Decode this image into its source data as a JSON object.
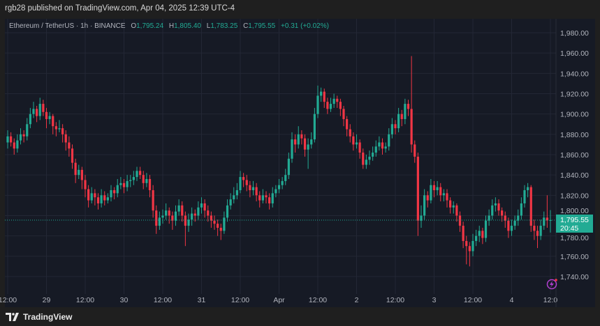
{
  "header": {
    "published": "rgb28 published on TradingView.com, Apr 04, 2025 12:39 UTC-4"
  },
  "legend": {
    "symbol": "Ethereum / TetherUS · 1h · BINANCE",
    "o_label": "O",
    "o": "1,795.24",
    "h_label": "H",
    "h": "1,805.40",
    "l_label": "L",
    "l": "1,783.25",
    "c_label": "C",
    "c": "1,795.55",
    "change": "+0.31 (+0.02%)"
  },
  "price_badge": {
    "price": "1,795.55",
    "countdown": "20:45"
  },
  "footer": {
    "brand": "TradingView"
  },
  "colors": {
    "up": "#22ab94",
    "down": "#f23645",
    "background": "#161a25",
    "grid": "#232735",
    "alert_icon": "#b33fd1"
  },
  "chart_data": {
    "type": "candlestick",
    "interval": "1h",
    "ylim": [
      1725,
      1995
    ],
    "grid": true,
    "y_ticks": [
      "1,740.00",
      "1,760.00",
      "1,780.00",
      "1,800.00",
      "1,820.00",
      "1,840.00",
      "1,860.00",
      "1,880.00",
      "1,900.00",
      "1,920.00",
      "1,940.00",
      "1,960.00",
      "1,980.00"
    ],
    "y_tick_values": [
      1740,
      1760,
      1780,
      1800,
      1820,
      1840,
      1860,
      1880,
      1900,
      1920,
      1940,
      1960,
      1980
    ],
    "x_ticks": [
      "12:00",
      "29",
      "12:00",
      "30",
      "12:00",
      "31",
      "12:00",
      "Apr",
      "12:00",
      "2",
      "12:00",
      "3",
      "12:00",
      "4",
      "12:0"
    ],
    "x_tick_hours": [
      0,
      12,
      24,
      36,
      48,
      60,
      72,
      84,
      96,
      108,
      120,
      132,
      144,
      156,
      168
    ],
    "last_price": 1795.55,
    "candles_ohlc": [
      [
        1872,
        1884,
        1866,
        1878
      ],
      [
        1878,
        1882,
        1868,
        1872
      ],
      [
        1872,
        1876,
        1860,
        1866
      ],
      [
        1866,
        1880,
        1862,
        1874
      ],
      [
        1874,
        1886,
        1870,
        1880
      ],
      [
        1880,
        1884,
        1872,
        1878
      ],
      [
        1878,
        1896,
        1874,
        1890
      ],
      [
        1890,
        1906,
        1886,
        1900
      ],
      [
        1900,
        1912,
        1896,
        1905
      ],
      [
        1905,
        1908,
        1892,
        1898
      ],
      [
        1898,
        1916,
        1894,
        1910
      ],
      [
        1910,
        1914,
        1898,
        1902
      ],
      [
        1902,
        1906,
        1886,
        1895
      ],
      [
        1895,
        1902,
        1890,
        1898
      ],
      [
        1898,
        1900,
        1880,
        1888
      ],
      [
        1888,
        1892,
        1878,
        1885
      ],
      [
        1885,
        1894,
        1882,
        1886
      ],
      [
        1886,
        1890,
        1872,
        1880
      ],
      [
        1880,
        1884,
        1864,
        1872
      ],
      [
        1872,
        1878,
        1858,
        1866
      ],
      [
        1866,
        1870,
        1846,
        1852
      ],
      [
        1852,
        1856,
        1832,
        1840
      ],
      [
        1840,
        1850,
        1836,
        1845
      ],
      [
        1845,
        1848,
        1826,
        1835
      ],
      [
        1835,
        1840,
        1818,
        1826
      ],
      [
        1826,
        1830,
        1808,
        1815
      ],
      [
        1815,
        1828,
        1812,
        1822
      ],
      [
        1822,
        1826,
        1810,
        1818
      ],
      [
        1818,
        1822,
        1806,
        1812
      ],
      [
        1812,
        1826,
        1808,
        1820
      ],
      [
        1820,
        1824,
        1810,
        1815
      ],
      [
        1815,
        1822,
        1812,
        1818
      ],
      [
        1818,
        1830,
        1814,
        1825
      ],
      [
        1825,
        1828,
        1816,
        1822
      ],
      [
        1822,
        1836,
        1818,
        1830
      ],
      [
        1830,
        1838,
        1826,
        1832
      ],
      [
        1832,
        1836,
        1822,
        1828
      ],
      [
        1828,
        1840,
        1824,
        1834
      ],
      [
        1834,
        1840,
        1828,
        1835
      ],
      [
        1835,
        1844,
        1830,
        1838
      ],
      [
        1838,
        1848,
        1834,
        1844
      ],
      [
        1844,
        1848,
        1836,
        1840
      ],
      [
        1840,
        1844,
        1826,
        1832
      ],
      [
        1832,
        1842,
        1828,
        1836
      ],
      [
        1836,
        1840,
        1818,
        1825
      ],
      [
        1825,
        1830,
        1798,
        1805
      ],
      [
        1805,
        1810,
        1782,
        1790
      ],
      [
        1790,
        1804,
        1786,
        1798
      ],
      [
        1798,
        1806,
        1792,
        1800
      ],
      [
        1800,
        1812,
        1796,
        1805
      ],
      [
        1805,
        1808,
        1792,
        1800
      ],
      [
        1800,
        1804,
        1786,
        1795
      ],
      [
        1795,
        1810,
        1790,
        1804
      ],
      [
        1804,
        1816,
        1800,
        1810
      ],
      [
        1810,
        1814,
        1794,
        1800
      ],
      [
        1800,
        1804,
        1770,
        1790
      ],
      [
        1790,
        1802,
        1784,
        1796
      ],
      [
        1796,
        1808,
        1790,
        1802
      ],
      [
        1802,
        1806,
        1794,
        1800
      ],
      [
        1800,
        1814,
        1796,
        1808
      ],
      [
        1808,
        1818,
        1802,
        1812
      ],
      [
        1812,
        1816,
        1798,
        1805
      ],
      [
        1805,
        1810,
        1794,
        1800
      ],
      [
        1800,
        1804,
        1788,
        1795
      ],
      [
        1795,
        1800,
        1786,
        1792
      ],
      [
        1792,
        1796,
        1780,
        1788
      ],
      [
        1788,
        1792,
        1776,
        1785
      ],
      [
        1785,
        1804,
        1782,
        1798
      ],
      [
        1798,
        1816,
        1794,
        1810
      ],
      [
        1810,
        1822,
        1806,
        1816
      ],
      [
        1816,
        1828,
        1812,
        1820
      ],
      [
        1820,
        1832,
        1816,
        1825
      ],
      [
        1825,
        1844,
        1822,
        1838
      ],
      [
        1838,
        1842,
        1828,
        1835
      ],
      [
        1835,
        1840,
        1824,
        1830
      ],
      [
        1830,
        1834,
        1818,
        1825
      ],
      [
        1825,
        1834,
        1820,
        1828
      ],
      [
        1828,
        1832,
        1814,
        1820
      ],
      [
        1820,
        1824,
        1808,
        1815
      ],
      [
        1815,
        1826,
        1812,
        1820
      ],
      [
        1820,
        1824,
        1812,
        1818
      ],
      [
        1818,
        1822,
        1806,
        1812
      ],
      [
        1812,
        1828,
        1808,
        1822
      ],
      [
        1822,
        1830,
        1818,
        1826
      ],
      [
        1826,
        1836,
        1822,
        1830
      ],
      [
        1830,
        1838,
        1826,
        1834
      ],
      [
        1834,
        1846,
        1830,
        1840
      ],
      [
        1840,
        1862,
        1836,
        1856
      ],
      [
        1856,
        1882,
        1852,
        1875
      ],
      [
        1875,
        1880,
        1862,
        1870
      ],
      [
        1870,
        1888,
        1866,
        1880
      ],
      [
        1880,
        1884,
        1870,
        1876
      ],
      [
        1876,
        1880,
        1858,
        1865
      ],
      [
        1865,
        1876,
        1846,
        1870
      ],
      [
        1870,
        1882,
        1866,
        1875
      ],
      [
        1875,
        1906,
        1872,
        1900
      ],
      [
        1900,
        1928,
        1896,
        1918
      ],
      [
        1918,
        1926,
        1912,
        1922
      ],
      [
        1922,
        1925,
        1906,
        1912
      ],
      [
        1912,
        1916,
        1900,
        1905
      ],
      [
        1905,
        1916,
        1902,
        1910
      ],
      [
        1910,
        1920,
        1906,
        1915
      ],
      [
        1915,
        1918,
        1906,
        1912
      ],
      [
        1912,
        1915,
        1898,
        1905
      ],
      [
        1905,
        1908,
        1888,
        1895
      ],
      [
        1895,
        1898,
        1878,
        1885
      ],
      [
        1885,
        1890,
        1872,
        1878
      ],
      [
        1878,
        1882,
        1864,
        1870
      ],
      [
        1870,
        1880,
        1866,
        1872
      ],
      [
        1872,
        1875,
        1856,
        1862
      ],
      [
        1862,
        1866,
        1846,
        1850
      ],
      [
        1850,
        1860,
        1846,
        1855
      ],
      [
        1855,
        1864,
        1850,
        1858
      ],
      [
        1858,
        1868,
        1854,
        1862
      ],
      [
        1862,
        1874,
        1858,
        1868
      ],
      [
        1868,
        1878,
        1864,
        1872
      ],
      [
        1872,
        1876,
        1860,
        1866
      ],
      [
        1866,
        1872,
        1862,
        1868
      ],
      [
        1868,
        1886,
        1864,
        1880
      ],
      [
        1880,
        1896,
        1876,
        1890
      ],
      [
        1890,
        1894,
        1880,
        1886
      ],
      [
        1886,
        1906,
        1882,
        1900
      ],
      [
        1900,
        1904,
        1888,
        1895
      ],
      [
        1895,
        1915,
        1890,
        1910
      ],
      [
        1910,
        1914,
        1898,
        1905
      ],
      [
        1905,
        1957,
        1862,
        1870
      ],
      [
        1870,
        1874,
        1852,
        1858
      ],
      [
        1858,
        1862,
        1780,
        1795
      ],
      [
        1795,
        1810,
        1788,
        1800
      ],
      [
        1800,
        1826,
        1796,
        1820
      ],
      [
        1820,
        1824,
        1808,
        1815
      ],
      [
        1815,
        1836,
        1812,
        1830
      ],
      [
        1830,
        1834,
        1818,
        1825
      ],
      [
        1825,
        1834,
        1820,
        1828
      ],
      [
        1828,
        1832,
        1814,
        1820
      ],
      [
        1820,
        1826,
        1814,
        1822
      ],
      [
        1822,
        1826,
        1808,
        1815
      ],
      [
        1815,
        1818,
        1802,
        1808
      ],
      [
        1808,
        1814,
        1802,
        1810
      ],
      [
        1810,
        1812,
        1794,
        1800
      ],
      [
        1800,
        1804,
        1784,
        1790
      ],
      [
        1790,
        1794,
        1768,
        1775
      ],
      [
        1775,
        1780,
        1752,
        1770
      ],
      [
        1770,
        1774,
        1750,
        1765
      ],
      [
        1765,
        1782,
        1760,
        1775
      ],
      [
        1775,
        1786,
        1770,
        1780
      ],
      [
        1780,
        1790,
        1774,
        1785
      ],
      [
        1785,
        1788,
        1772,
        1778
      ],
      [
        1778,
        1800,
        1774,
        1795
      ],
      [
        1795,
        1806,
        1790,
        1800
      ],
      [
        1800,
        1816,
        1796,
        1810
      ],
      [
        1810,
        1818,
        1804,
        1812
      ],
      [
        1812,
        1816,
        1800,
        1805
      ],
      [
        1805,
        1808,
        1794,
        1800
      ],
      [
        1800,
        1804,
        1788,
        1795
      ],
      [
        1795,
        1798,
        1778,
        1785
      ],
      [
        1785,
        1796,
        1780,
        1790
      ],
      [
        1790,
        1800,
        1786,
        1795
      ],
      [
        1795,
        1806,
        1790,
        1800
      ],
      [
        1800,
        1818,
        1796,
        1812
      ],
      [
        1812,
        1830,
        1808,
        1825
      ],
      [
        1825,
        1832,
        1818,
        1828
      ],
      [
        1828,
        1830,
        1784,
        1790
      ],
      [
        1790,
        1796,
        1776,
        1785
      ],
      [
        1785,
        1790,
        1768,
        1780
      ],
      [
        1780,
        1796,
        1776,
        1790
      ],
      [
        1790,
        1804,
        1786,
        1798
      ],
      [
        1798,
        1820,
        1788,
        1795.24
      ],
      [
        1795.24,
        1805.4,
        1783.25,
        1795.55
      ]
    ]
  }
}
